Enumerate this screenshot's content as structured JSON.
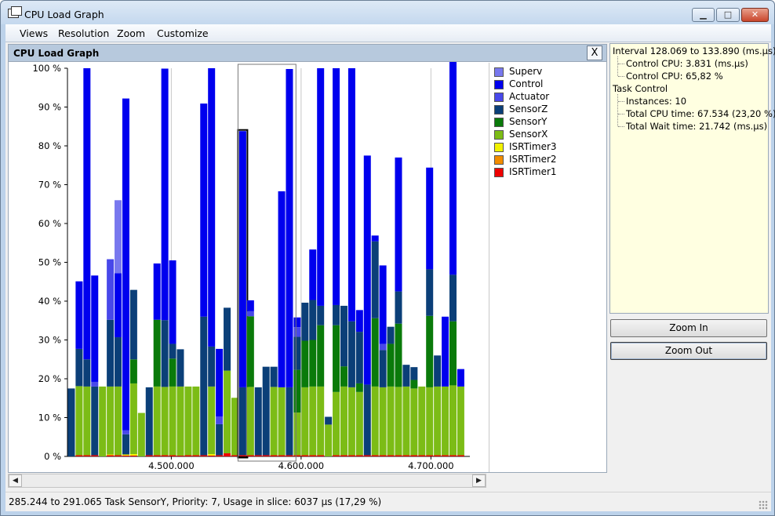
{
  "window": {
    "title": "CPU Load Graph",
    "min_label": "▁",
    "max_label": "□",
    "close_label": "✕"
  },
  "menu": [
    "Views",
    "Resolution",
    "Zoom",
    "Customize"
  ],
  "graph": {
    "title": "CPU Load Graph",
    "close_label": "X",
    "y_ticks": [
      "100 %",
      "90 %",
      "80 %",
      "70 %",
      "60 %",
      "50 %",
      "40 %",
      "30 %",
      "20 %",
      "10 %",
      "0 %"
    ],
    "x_ticks": [
      "4.500.000",
      "4.600.000",
      "4.700.000"
    ]
  },
  "legend": [
    {
      "label": "Superv",
      "color": "#7878ee"
    },
    {
      "label": "Control",
      "color": "#0000ee"
    },
    {
      "label": "Actuator",
      "color": "#4848ea"
    },
    {
      "label": "SensorZ",
      "color": "#0b3f78"
    },
    {
      "label": "SensorY",
      "color": "#0a7a0a"
    },
    {
      "label": "SensorX",
      "color": "#7cbc16"
    },
    {
      "label": "ISRTimer3",
      "color": "#f2f200"
    },
    {
      "label": "ISRTimer2",
      "color": "#f28c00"
    },
    {
      "label": "ISRTimer1",
      "color": "#ee0000"
    }
  ],
  "chart_data": {
    "type": "bar",
    "stacked": true,
    "ylim": [
      0,
      100
    ],
    "y_unit": "%",
    "xlim": [
      4420000,
      4730000
    ],
    "x_tick_values": [
      4500000,
      4600000,
      4700000
    ],
    "series_order": [
      "ISRTimer1",
      "ISRTimer2",
      "ISRTimer3",
      "SensorX",
      "SensorY",
      "SensorZ",
      "Actuator",
      "Control",
      "Superv"
    ],
    "selection_rect": {
      "x_from": 4555000,
      "x_to": 4593000
    },
    "highlighted_bar_index": 22,
    "bars": [
      {
        "x": 4423000,
        "SensorZ": 17.5
      },
      {
        "x": 4429000,
        "ISRTimer1": 0.3,
        "SensorX": 17.8,
        "SensorZ": 9.6,
        "Control": 17.4
      },
      {
        "x": 4435000,
        "ISRTimer1": 0.3,
        "SensorX": 17.7,
        "SensorZ": 7.0,
        "Control": 75.0
      },
      {
        "x": 4441000,
        "ISRTimer1": 0.3,
        "SensorZ": 17.7,
        "Actuator": 1.2,
        "Control": 27.4
      },
      {
        "x": 4447000,
        "SensorX": 18.0
      },
      {
        "x": 4453000,
        "ISRTimer1": 0.3,
        "ISRTimer3": 0.2,
        "SensorX": 17.5,
        "SensorZ": 17.2,
        "Actuator": 15.6
      },
      {
        "x": 4459000,
        "ISRTimer1": 0.3,
        "SensorX": 17.7,
        "SensorZ": 12.7,
        "Control": 16.5,
        "Superv": 18.8
      },
      {
        "x": 4465000,
        "ISRTimer1": 0.2,
        "ISRTimer3": 0.3,
        "SensorZ": 5.2,
        "Actuator": 1.0,
        "Control": 85.5
      },
      {
        "x": 4471000,
        "ISRTimer1": 0.2,
        "ISRTimer3": 0.4,
        "SensorX": 18.2,
        "SensorY": 6.2,
        "SensorZ": 17.9
      },
      {
        "x": 4477000,
        "SensorX": 11.2
      },
      {
        "x": 4483000,
        "ISRTimer1": 0.3,
        "SensorZ": 17.5
      },
      {
        "x": 4489000,
        "ISRTimer1": 0.3,
        "SensorX": 17.7,
        "SensorY": 17.2,
        "Control": 14.5
      },
      {
        "x": 4495000,
        "ISRTimer1": 0.3,
        "SensorX": 17.6,
        "SensorZ": 17.2,
        "Control": 64.8
      },
      {
        "x": 4501000,
        "ISRTimer1": 0.3,
        "SensorX": 17.7,
        "SensorY": 7.2,
        "SensorZ": 3.8,
        "Control": 21.5
      },
      {
        "x": 4507000,
        "ISRTimer1": 0.2,
        "SensorX": 17.8,
        "SensorZ": 9.6
      },
      {
        "x": 4513000,
        "ISRTimer1": 0.3,
        "SensorX": 17.7
      },
      {
        "x": 4519000,
        "ISRTimer1": 0.3,
        "SensorX": 17.7
      },
      {
        "x": 4525000,
        "ISRTimer1": 0.3,
        "SensorZ": 35.7,
        "Control": 54.9
      },
      {
        "x": 4531000,
        "ISRTimer1": 0.2,
        "ISRTimer3": 0.4,
        "SensorX": 17.4,
        "SensorZ": 10.3,
        "Control": 71.7
      },
      {
        "x": 4537000,
        "ISRTimer1": 0.3,
        "SensorZ": 8.0,
        "Actuator": 2.0,
        "Control": 17.4
      },
      {
        "x": 4543000,
        "ISRTimer1": 0.8,
        "SensorX": 21.3,
        "SensorZ": 16.2
      },
      {
        "x": 4549000,
        "ISRTimer1": 0.3,
        "SensorX": 14.8
      },
      {
        "x": 4555000,
        "ISRTimer1": 0.3,
        "SensorZ": 17.5,
        "Control": 66.0
      },
      {
        "x": 4561000,
        "ISRTimer1": 0.3,
        "SensorX": 17.6,
        "SensorY": 18.2,
        "Actuator": 1.3,
        "Control": 2.8
      },
      {
        "x": 4567000,
        "ISRTimer1": 0.3,
        "SensorZ": 17.5
      },
      {
        "x": 4573000,
        "ISRTimer1": 0.3,
        "SensorZ": 22.8
      },
      {
        "x": 4579000,
        "ISRTimer1": 0.3,
        "SensorX": 17.6,
        "SensorZ": 5.2
      },
      {
        "x": 4585000,
        "ISRTimer1": 0.3,
        "SensorX": 17.5,
        "Control": 50.5
      },
      {
        "x": 4591000,
        "ISRTimer1": 0.3,
        "SensorZ": 17.5,
        "Control": 82.0
      },
      {
        "x": 4597000,
        "ISRTimer1": 0.3,
        "SensorX": 11.0,
        "SensorY": 11.0,
        "SensorZ": 8.5,
        "Actuator": 2.5,
        "Control": 2.5
      },
      {
        "x": 4603000,
        "ISRTimer1": 0.3,
        "SensorX": 17.5,
        "SensorY": 12.0,
        "SensorZ": 9.8
      },
      {
        "x": 4609000,
        "ISRTimer1": 0.3,
        "SensorX": 17.7,
        "SensorY": 12.0,
        "SensorZ": 10.3,
        "Control": 13.0
      },
      {
        "x": 4615000,
        "ISRTimer1": 0.3,
        "SensorX": 17.7,
        "SensorY": 15.8,
        "SensorZ": 5.0,
        "Control": 61.2
      },
      {
        "x": 4621000,
        "SensorX": 8.2,
        "SensorZ": 2.0
      },
      {
        "x": 4627000,
        "ISRTimer1": 0.3,
        "SensorX": 16.3,
        "SensorY": 17.2,
        "SensorZ": 5.2,
        "Control": 61.0
      },
      {
        "x": 4633000,
        "ISRTimer1": 0.3,
        "SensorX": 17.7,
        "SensorY": 5.2,
        "SensorZ": 15.6
      },
      {
        "x": 4639000,
        "ISRTimer1": 0.3,
        "SensorX": 17.5,
        "SensorZ": 17.0,
        "Control": 65.2
      },
      {
        "x": 4645000,
        "ISRTimer1": 0.3,
        "SensorX": 16.3,
        "SensorY": 2.2,
        "SensorZ": 13.3,
        "Control": 5.6
      },
      {
        "x": 4651000,
        "ISRTimer1": 0.3,
        "SensorZ": 18.2,
        "Control": 59.0
      },
      {
        "x": 4657000,
        "ISRTimer1": 0.3,
        "SensorX": 17.7,
        "SensorY": 17.6,
        "SensorZ": 19.8,
        "Control": 1.5
      },
      {
        "x": 4663000,
        "ISRTimer1": 0.3,
        "SensorX": 17.5,
        "SensorZ": 9.6,
        "Actuator": 1.6,
        "Control": 20.2
      },
      {
        "x": 4669000,
        "ISRTimer1": 0.3,
        "SensorX": 17.7,
        "SensorY": 11.0,
        "SensorZ": 4.4
      },
      {
        "x": 4675000,
        "ISRTimer1": 0.3,
        "SensorX": 17.6,
        "SensorY": 16.3,
        "SensorZ": 8.3,
        "Control": 34.5
      },
      {
        "x": 4681000,
        "ISRTimer1": 0.3,
        "SensorX": 17.7,
        "SensorZ": 5.6
      },
      {
        "x": 4687000,
        "ISRTimer1": 0.3,
        "SensorX": 17.2,
        "SensorY": 2.2,
        "SensorZ": 3.3
      },
      {
        "x": 4693000,
        "ISRTimer1": 0.3,
        "SensorX": 17.7
      },
      {
        "x": 4699000,
        "ISRTimer1": 0.3,
        "SensorX": 17.5,
        "SensorY": 18.4,
        "SensorZ": 12.0,
        "Control": 26.2
      },
      {
        "x": 4705000,
        "ISRTimer1": 0.3,
        "SensorX": 17.7,
        "SensorZ": 8.0
      },
      {
        "x": 4711000,
        "ISRTimer1": 0.3,
        "SensorX": 17.7,
        "Control": 18.0
      },
      {
        "x": 4717000,
        "ISRTimer1": 0.3,
        "SensorX": 18.0,
        "SensorY": 16.5,
        "SensorZ": 12.0,
        "Control": 68.0
      },
      {
        "x": 4723000,
        "ISRTimer1": 0.3,
        "SensorX": 17.7,
        "Control": 4.5
      }
    ]
  },
  "info": {
    "interval": "Interval 128.069 to 133.890 (ms.µs)",
    "control_cpu_time": "Control CPU: 3.831 (ms.µs)",
    "control_cpu_pct": "Control CPU: 65,82 %",
    "task": "Task Control",
    "instances": "Instances: 10",
    "total_cpu": "Total CPU time: 67.534 (23,20 %)",
    "total_wait": "Total Wait time: 21.742 (ms.µs)"
  },
  "buttons": {
    "zoom_in": "Zoom In",
    "zoom_out": "Zoom Out"
  },
  "scroll": {
    "left_arrow": "◀",
    "right_arrow": "▶"
  },
  "status": "285.244 to 291.065 Task SensorY, Priority: 7, Usage in slice: 6037 µs (17,29 %)"
}
